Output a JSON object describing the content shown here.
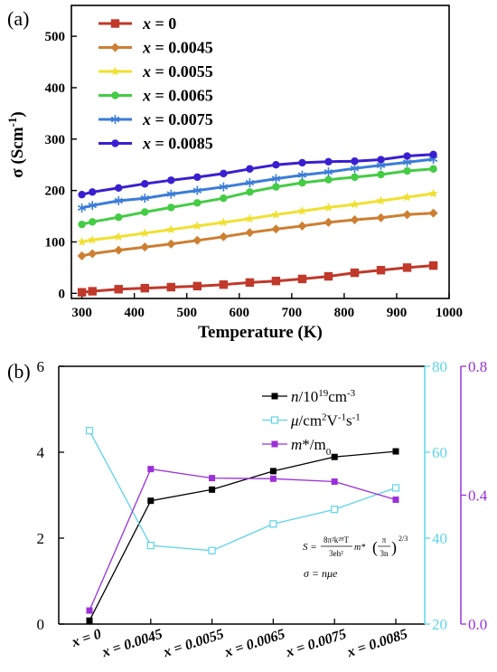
{
  "chart_data": [
    {
      "panel_label": "(a)",
      "type": "line",
      "title": "",
      "xlabel": "Temperature (K)",
      "ylabel": "σ (Scm⁻¹)",
      "ylabel_parts": {
        "main": "σ (Scm",
        "sup": "-1",
        "close": ")"
      },
      "xlim": [
        280,
        1000
      ],
      "ylim": [
        -10,
        560
      ],
      "xticks": [
        300,
        400,
        500,
        600,
        700,
        800,
        900,
        1000
      ],
      "yticks": [
        0,
        100,
        200,
        300,
        400,
        500
      ],
      "grid": false,
      "legend_placement": "top-left",
      "x": [
        300,
        320,
        370,
        420,
        470,
        520,
        570,
        620,
        670,
        720,
        770,
        820,
        870,
        920,
        970
      ],
      "series": [
        {
          "name": "x = 0",
          "var": "x",
          "eq": " = 0",
          "color": "#c0392b",
          "marker": "square",
          "values": [
            2,
            4,
            8,
            10,
            12,
            14,
            17,
            21,
            24,
            28,
            33,
            40,
            45,
            50,
            54
          ]
        },
        {
          "name": "x = 0.0045",
          "var": "x",
          "eq": " = 0.0045",
          "color": "#cd7f32",
          "marker": "diamond",
          "values": [
            73,
            77,
            84,
            90,
            96,
            103,
            110,
            118,
            125,
            131,
            138,
            143,
            147,
            153,
            156
          ]
        },
        {
          "name": "x = 0.0055",
          "var": "x",
          "eq": " = 0.0055",
          "color": "#f0e030",
          "marker": "star",
          "values": [
            100,
            104,
            110,
            117,
            124,
            131,
            138,
            145,
            153,
            160,
            167,
            173,
            180,
            187,
            194
          ]
        },
        {
          "name": "x = 0.0065",
          "var": "x",
          "eq": " = 0.0065",
          "color": "#44cc44",
          "marker": "circle",
          "values": [
            134,
            139,
            148,
            158,
            167,
            176,
            185,
            197,
            207,
            215,
            221,
            226,
            231,
            238,
            242
          ]
        },
        {
          "name": "x = 0.0075",
          "var": "x",
          "eq": " = 0.0075",
          "color": "#3b7dd8",
          "marker": "asterisk",
          "values": [
            166,
            171,
            180,
            185,
            193,
            200,
            207,
            215,
            223,
            230,
            236,
            243,
            249,
            255,
            261
          ]
        },
        {
          "name": "x = 0.0085",
          "var": "x",
          "eq": " = 0.0085",
          "color": "#3a1fd0",
          "marker": "circle",
          "values": [
            192,
            197,
            205,
            213,
            220,
            226,
            233,
            242,
            250,
            254,
            256,
            257,
            260,
            267,
            270
          ]
        }
      ]
    },
    {
      "panel_label": "(b)",
      "type": "line",
      "title": "",
      "xlabel": "",
      "categories": [
        "x = 0",
        "x = 0.0045",
        "x = 0.0055",
        "x = 0.0065",
        "x = 0.0075",
        "x = 0.0085"
      ],
      "category_parts": [
        {
          "var": "x",
          "eq": " = 0"
        },
        {
          "var": "x",
          "eq": " = 0.0045"
        },
        {
          "var": "x",
          "eq": " = 0.0055"
        },
        {
          "var": "x",
          "eq": " = 0.0065"
        },
        {
          "var": "x",
          "eq": " = 0.0075"
        },
        {
          "var": "x",
          "eq": " = 0.0085"
        }
      ],
      "axes": {
        "left": {
          "ylim": [
            0,
            6
          ],
          "ticks": [
            0,
            2,
            4,
            6
          ],
          "color": "#000000"
        },
        "right1": {
          "ylim": [
            20,
            80
          ],
          "ticks": [
            20,
            40,
            60,
            80
          ],
          "color": "#5dd5e8"
        },
        "right2": {
          "ylim": [
            0.0,
            0.8
          ],
          "ticks": [
            "0.0",
            "0.4",
            "0.8"
          ],
          "tick_values": [
            0,
            0.4,
            0.8
          ],
          "color": "#9b30d9"
        }
      },
      "grid": false,
      "legend_placement": "top-right",
      "series": [
        {
          "name": "n/10¹⁹cm⁻³",
          "axis": "left",
          "color": "#000000",
          "marker": "filled-square",
          "legend_parts": [
            {
              "t": "n",
              "i": true
            },
            {
              "t": "/10"
            },
            {
              "t": "19",
              "sup": true
            },
            {
              "t": "cm"
            },
            {
              "t": "-3",
              "sup": true
            }
          ],
          "values": [
            0.08,
            2.87,
            3.13,
            3.56,
            3.89,
            4.02
          ]
        },
        {
          "name": "μ/cm²V⁻¹s⁻¹",
          "axis": "right1",
          "color": "#5dd5e8",
          "marker": "open-square",
          "legend_parts": [
            {
              "t": "μ",
              "i": true
            },
            {
              "t": "/cm"
            },
            {
              "t": "2",
              "sup": true
            },
            {
              "t": "V"
            },
            {
              "t": "-1",
              "sup": true
            },
            {
              "t": "s"
            },
            {
              "t": "-1",
              "sup": true
            }
          ],
          "values": [
            65,
            38.3,
            37.1,
            43.3,
            46.7,
            51.7
          ]
        },
        {
          "name": "m*/m0",
          "axis": "right2",
          "color": "#9b30d9",
          "marker": "filled-square",
          "legend_parts": [
            {
              "t": "m",
              "i": true
            },
            {
              "t": "*/m"
            },
            {
              "t": "0",
              "sub": true
            }
          ],
          "values": [
            0.042,
            0.481,
            0.453,
            0.451,
            0.442,
            0.386
          ]
        }
      ],
      "annotation": {
        "formula_lhs": "S = ",
        "formula_num": "8π²k²ᴮT",
        "formula_den": "3eh²",
        "formula_mid": "m*",
        "formula_frac_num": "π",
        "formula_frac_den": "3n",
        "formula_exp": "2/3",
        "relation": "σ = nμe"
      }
    }
  ]
}
